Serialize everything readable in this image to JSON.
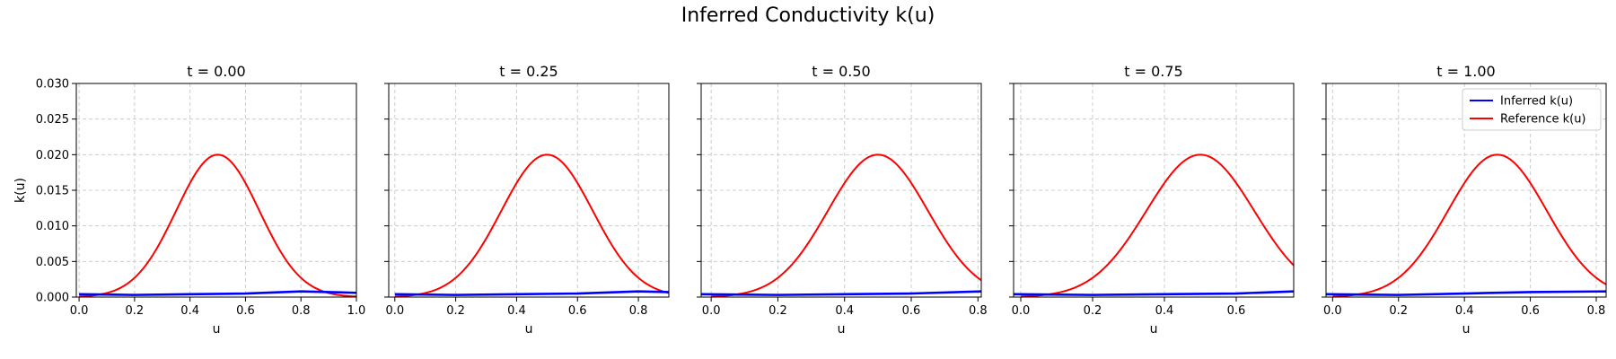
{
  "figure": {
    "title": "Inferred Conductivity k(u)"
  },
  "chart_data": {
    "type": "line",
    "suptitle": "Inferred Conductivity k(u)",
    "shared_y": true,
    "ylabel": "k(u)",
    "ylim": [
      0,
      0.03
    ],
    "yticks": [
      0.0,
      0.005,
      0.01,
      0.015,
      0.02,
      0.025,
      0.03
    ],
    "yticklabels": [
      "0.000",
      "0.005",
      "0.010",
      "0.015",
      "0.020",
      "0.025",
      "0.030"
    ],
    "grid": true,
    "legend": {
      "placement": "upper-right",
      "panel": 4,
      "entries": [
        {
          "name": "Inferred k(u)",
          "color": "#0000ff"
        },
        {
          "name": "Reference k(u)",
          "color": "#ff0000"
        }
      ]
    },
    "reference_curve": {
      "description": "Gaussian peak",
      "peak": 0.02,
      "center": 0.5,
      "sigma": 0.15
    },
    "panels": [
      {
        "title": "t = 0.00",
        "xlabel": "u",
        "xlim": [
          -0.01,
          1.0
        ],
        "xticks": [
          0.0,
          0.2,
          0.4,
          0.6,
          0.8,
          1.0
        ],
        "xticklabels": [
          "0.0",
          "0.2",
          "0.4",
          "0.6",
          "0.8",
          "1.0"
        ],
        "series": [
          {
            "name": "Inferred k(u)",
            "color": "#0000ff",
            "x": [
              0.0,
              0.2,
              0.4,
              0.6,
              0.8,
              1.0
            ],
            "y": [
              0.0004,
              0.0003,
              0.0004,
              0.0005,
              0.0008,
              0.0006
            ]
          },
          {
            "name": "Reference k(u)",
            "color": "#ff0000",
            "x_range": [
              0.0,
              1.0
            ]
          }
        ]
      },
      {
        "title": "t = 0.25",
        "xlabel": "u",
        "xlim": [
          -0.02,
          0.9
        ],
        "xticks": [
          0.0,
          0.2,
          0.4,
          0.6,
          0.8
        ],
        "xticklabels": [
          "0.0",
          "0.2",
          "0.4",
          "0.6",
          "0.8"
        ],
        "series": [
          {
            "name": "Inferred k(u)",
            "color": "#0000ff",
            "x": [
              0.0,
              0.2,
              0.4,
              0.6,
              0.8,
              0.9
            ],
            "y": [
              0.0004,
              0.0003,
              0.0004,
              0.0005,
              0.0008,
              0.0007
            ]
          },
          {
            "name": "Reference k(u)",
            "color": "#ff0000",
            "x_range": [
              0.0,
              0.9
            ]
          }
        ]
      },
      {
        "title": "t = 0.50",
        "xlabel": "u",
        "xlim": [
          -0.03,
          0.81
        ],
        "xticks": [
          0.0,
          0.2,
          0.4,
          0.6,
          0.8
        ],
        "xticklabels": [
          "0.0",
          "0.2",
          "0.4",
          "0.6",
          "0.8"
        ],
        "series": [
          {
            "name": "Inferred k(u)",
            "color": "#0000ff",
            "x": [
              -0.03,
              0.2,
              0.4,
              0.6,
              0.81
            ],
            "y": [
              0.0004,
              0.0003,
              0.0004,
              0.0005,
              0.0008
            ]
          },
          {
            "name": "Reference k(u)",
            "color": "#ff0000",
            "x_range": [
              0.0,
              0.81
            ]
          }
        ]
      },
      {
        "title": "t = 0.75",
        "xlabel": "u",
        "xlim": [
          -0.02,
          0.76
        ],
        "xticks": [
          0.0,
          0.2,
          0.4,
          0.6
        ],
        "xticklabels": [
          "0.0",
          "0.2",
          "0.4",
          "0.6"
        ],
        "series": [
          {
            "name": "Inferred k(u)",
            "color": "#0000ff",
            "x": [
              -0.02,
              0.2,
              0.4,
              0.6,
              0.76
            ],
            "y": [
              0.0004,
              0.0003,
              0.0004,
              0.0005,
              0.0008
            ]
          },
          {
            "name": "Reference k(u)",
            "color": "#ff0000",
            "x_range": [
              0.0,
              0.76
            ]
          }
        ]
      },
      {
        "title": "t = 1.00",
        "xlabel": "u",
        "xlim": [
          -0.02,
          0.83
        ],
        "xticks": [
          0.0,
          0.2,
          0.4,
          0.6,
          0.8
        ],
        "xticklabels": [
          "0.0",
          "0.2",
          "0.4",
          "0.6",
          "0.8"
        ],
        "series": [
          {
            "name": "Inferred k(u)",
            "color": "#0000ff",
            "x": [
              -0.02,
              0.2,
              0.4,
              0.6,
              0.83
            ],
            "y": [
              0.0004,
              0.0003,
              0.0005,
              0.0007,
              0.0008
            ]
          },
          {
            "name": "Reference k(u)",
            "color": "#ff0000",
            "x_range": [
              0.0,
              0.83
            ]
          }
        ]
      }
    ]
  }
}
